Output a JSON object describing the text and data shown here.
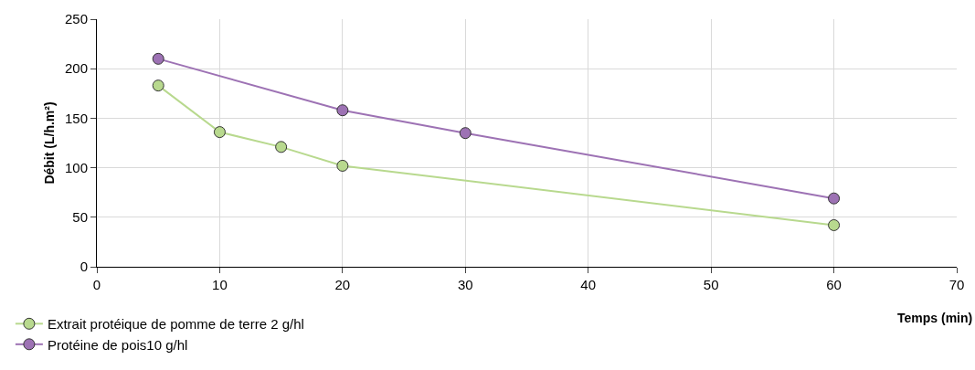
{
  "chart_data": {
    "type": "line",
    "xlabel": "Temps (min)",
    "ylabel": "Débit (L/h.m²)",
    "series": [
      {
        "name": "Extrait protéique de pomme de terre 2 g/hl",
        "color": "#b8d98e",
        "x": [
          5,
          10,
          15,
          20,
          60
        ],
        "values": [
          183,
          136,
          121,
          102,
          42
        ]
      },
      {
        "name": "Protéine de pois10 g/hl",
        "color": "#9d72b4",
        "x": [
          5,
          20,
          30,
          60
        ],
        "values": [
          210,
          158,
          135,
          69
        ]
      }
    ],
    "xlim": [
      0,
      70
    ],
    "xticks": [
      0,
      10,
      20,
      30,
      40,
      50,
      60,
      70
    ],
    "ylim": [
      0,
      250
    ],
    "yticks": [
      0,
      50,
      100,
      150,
      200,
      250
    ],
    "grid": true,
    "legend": "bottom left",
    "marker": "circle",
    "line_style": "solid"
  }
}
